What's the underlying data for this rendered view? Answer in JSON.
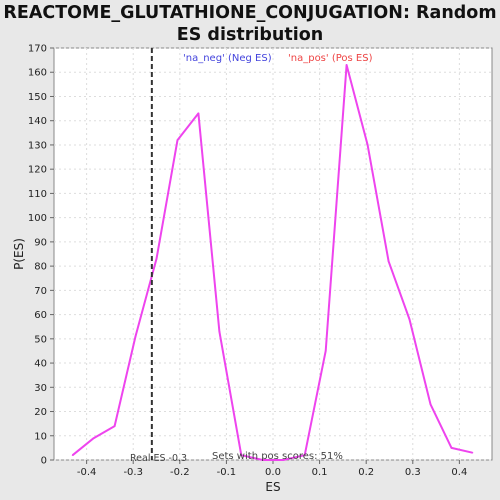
{
  "chart_data": {
    "type": "line",
    "title_line1": "REACTOME_GLUTATHIONE_CONJUGATION: Random",
    "title_line2": "ES distribution",
    "xlabel": "ES",
    "ylabel": "P(ES)",
    "xlim": [
      -0.47,
      0.47
    ],
    "ylim": [
      0,
      170
    ],
    "x_ticks": [
      "-0.4",
      "-0.3",
      "-0.2",
      "-0.1",
      "0.0",
      "0.1",
      "0.2",
      "0.3",
      "0.4"
    ],
    "x_tick_values": [
      -0.4,
      -0.3,
      -0.2,
      -0.1,
      0.0,
      0.1,
      0.2,
      0.3,
      0.4
    ],
    "y_ticks": [
      0,
      10,
      20,
      30,
      40,
      50,
      60,
      70,
      80,
      90,
      100,
      110,
      120,
      130,
      140,
      150,
      160,
      170
    ],
    "grid": true,
    "series": [
      {
        "color": "#ee44ee",
        "x": [
          -0.43,
          -0.385,
          -0.34,
          -0.295,
          -0.25,
          -0.205,
          -0.16,
          -0.115,
          -0.068,
          -0.022,
          0.022,
          0.068,
          0.113,
          0.158,
          0.203,
          0.248,
          0.293,
          0.338,
          0.383,
          0.428
        ],
        "y": [
          2,
          9,
          14,
          51,
          83,
          132,
          143,
          53,
          2,
          0,
          0,
          2,
          45,
          163,
          130,
          82,
          58,
          23,
          5,
          3
        ]
      }
    ],
    "real_es": -0.26,
    "legend": {
      "neg_label": "'na_neg' (Neg ES)",
      "neg_color": "#4444dd",
      "pos_label": "'na_pos' (Pos ES)",
      "pos_color": "#ee4444"
    },
    "annotations": {
      "real_es_label": "Real ES -0.3",
      "pos_scores_label": "Sets with pos scores: 51%"
    }
  }
}
